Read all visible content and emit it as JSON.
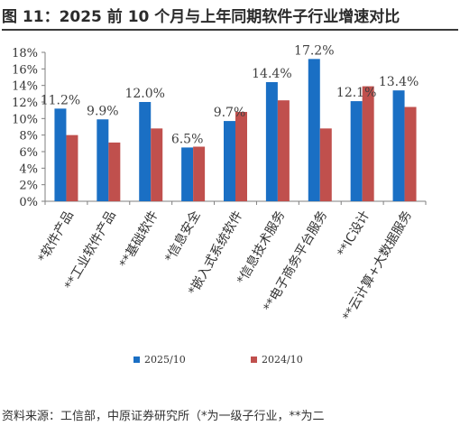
{
  "title": "图 11：2025 前 10 个月与上年同期软件子行业增速对比",
  "source": "资料来源：工信部，中原证券研究所（*为一级子行业，**为二",
  "colors": {
    "series_2025": "#1a6fc4",
    "series_2024": "#c0504d"
  },
  "chart_data": {
    "type": "bar",
    "categories": [
      "*软件产品",
      "**工业软件产品",
      "**基础软件",
      "*信息安全",
      "*嵌入式系统软件",
      "*信息技术服务",
      "**电子商务平台服务",
      "**IC设计",
      "**云计算+大数据服务"
    ],
    "series": [
      {
        "name": "2025/10",
        "values": [
          11.2,
          9.9,
          12.0,
          6.5,
          9.7,
          14.4,
          17.2,
          12.1,
          13.4
        ]
      },
      {
        "name": "2024/10",
        "values": [
          8.0,
          7.1,
          8.8,
          6.6,
          10.8,
          12.2,
          8.8,
          13.9,
          11.4
        ]
      }
    ],
    "data_labels": [
      "11.2%",
      "9.9%",
      "12.0%",
      "6.5%",
      "9.7%",
      "14.4%",
      "17.2%",
      "12.1%",
      "13.4%"
    ],
    "y_ticks": [
      "0%",
      "2%",
      "4%",
      "6%",
      "8%",
      "10%",
      "12%",
      "14%",
      "16%",
      "18%"
    ],
    "ylim": [
      0,
      18
    ],
    "grid": false,
    "legend_position": "bottom"
  }
}
